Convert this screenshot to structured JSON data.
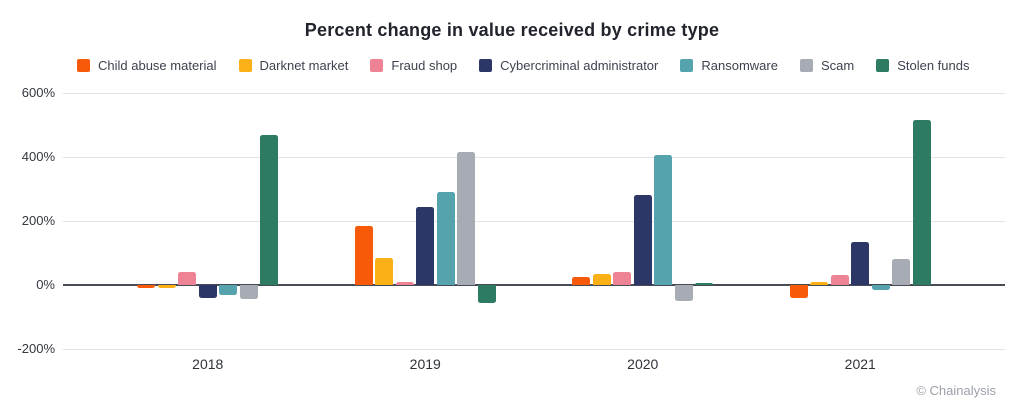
{
  "title": "Percent change in value received by crime type",
  "copyright": "© Chainalysis",
  "colors": {
    "title_text": "#21242c",
    "legend_text": "#3d434f",
    "axis_text": "#33373f",
    "gridline": "#e1e3e6",
    "zero_line": "#464b55",
    "background": "#ffffff"
  },
  "chart_data": {
    "type": "bar",
    "title": "Percent change in value received by crime type",
    "xlabel": "",
    "ylabel": "",
    "categories": [
      "2018",
      "2019",
      "2020",
      "2021"
    ],
    "series": [
      {
        "name": "Child abuse material",
        "color": "#f85a0a",
        "values": [
          -10,
          185,
          25,
          -40
        ]
      },
      {
        "name": "Darknet market",
        "color": "#fbb017",
        "values": [
          -10,
          85,
          35,
          10
        ]
      },
      {
        "name": "Fraud shop",
        "color": "#ee8396",
        "values": [
          40,
          8,
          40,
          30
        ]
      },
      {
        "name": "Cybercriminal administrator",
        "color": "#2c3768",
        "values": [
          -40,
          245,
          280,
          135
        ]
      },
      {
        "name": "Ransomware",
        "color": "#55a3ad",
        "values": [
          -30,
          290,
          405,
          -15
        ]
      },
      {
        "name": "Scam",
        "color": "#a6abb4",
        "values": [
          -45,
          415,
          -50,
          80
        ]
      },
      {
        "name": "Stolen funds",
        "color": "#2e7b63",
        "values": [
          470,
          -55,
          3,
          515
        ]
      }
    ],
    "ylim": [
      -200,
      600
    ],
    "yticks": [
      600,
      400,
      200,
      0,
      -200
    ],
    "ytick_labels": [
      "600%",
      "400%",
      "200%",
      "0%",
      "-200%"
    ],
    "grid": true,
    "legend_position": "top"
  }
}
